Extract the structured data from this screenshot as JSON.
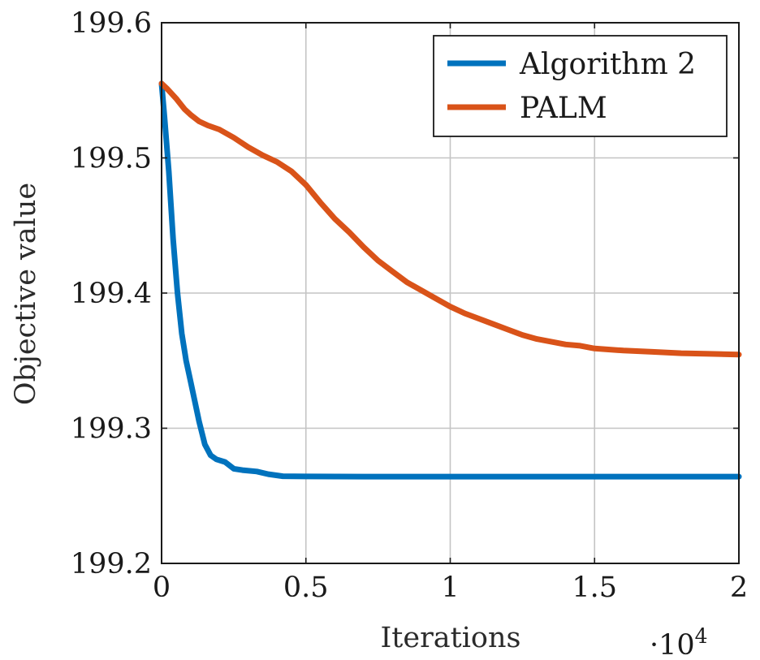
{
  "chart_data": {
    "type": "line",
    "xlabel": "Iterations",
    "ylabel": "Objective value",
    "x_scale_label": "·10",
    "x_scale_exponent": "4",
    "xlim": [
      0,
      2
    ],
    "ylim": [
      199.2,
      199.6
    ],
    "xticks": [
      0,
      0.5,
      1,
      1.5,
      2
    ],
    "xtick_labels": [
      "0",
      "0.5",
      "1",
      "1.5",
      "2"
    ],
    "yticks": [
      199.2,
      199.3,
      199.4,
      199.5,
      199.6
    ],
    "ytick_labels": [
      "199.2",
      "199.3",
      "199.4",
      "199.5",
      "199.6"
    ],
    "grid": true,
    "legend_position": "top-right",
    "series": [
      {
        "name": "Algorithm 2",
        "color": "#0072bd",
        "x": [
          0,
          0.01,
          0.025,
          0.04,
          0.055,
          0.07,
          0.085,
          0.1,
          0.115,
          0.13,
          0.15,
          0.17,
          0.19,
          0.22,
          0.25,
          0.28,
          0.33,
          0.37,
          0.42,
          0.5,
          0.7,
          1.0,
          1.5,
          2.0
        ],
        "y": [
          199.555,
          199.53,
          199.49,
          199.44,
          199.4,
          199.37,
          199.35,
          199.335,
          199.32,
          199.305,
          199.288,
          199.28,
          199.277,
          199.275,
          199.27,
          199.269,
          199.268,
          199.266,
          199.2645,
          199.2643,
          199.2642,
          199.2642,
          199.2642,
          199.2642
        ]
      },
      {
        "name": "PALM",
        "color": "#d95319",
        "x": [
          0,
          0.02,
          0.05,
          0.08,
          0.1,
          0.13,
          0.16,
          0.2,
          0.25,
          0.3,
          0.35,
          0.4,
          0.45,
          0.5,
          0.55,
          0.6,
          0.65,
          0.7,
          0.75,
          0.8,
          0.85,
          0.9,
          0.95,
          1.0,
          1.05,
          1.1,
          1.15,
          1.2,
          1.25,
          1.3,
          1.35,
          1.4,
          1.45,
          1.5,
          1.6,
          1.7,
          1.8,
          1.9,
          2.0
        ],
        "y": [
          199.555,
          199.551,
          199.544,
          199.536,
          199.532,
          199.527,
          199.524,
          199.521,
          199.515,
          199.508,
          199.502,
          199.497,
          199.49,
          199.48,
          199.467,
          199.455,
          199.445,
          199.434,
          199.424,
          199.416,
          199.408,
          199.402,
          199.396,
          199.39,
          199.385,
          199.381,
          199.377,
          199.373,
          199.369,
          199.366,
          199.364,
          199.362,
          199.361,
          199.359,
          199.3575,
          199.3565,
          199.3555,
          199.355,
          199.3545
        ]
      }
    ]
  }
}
